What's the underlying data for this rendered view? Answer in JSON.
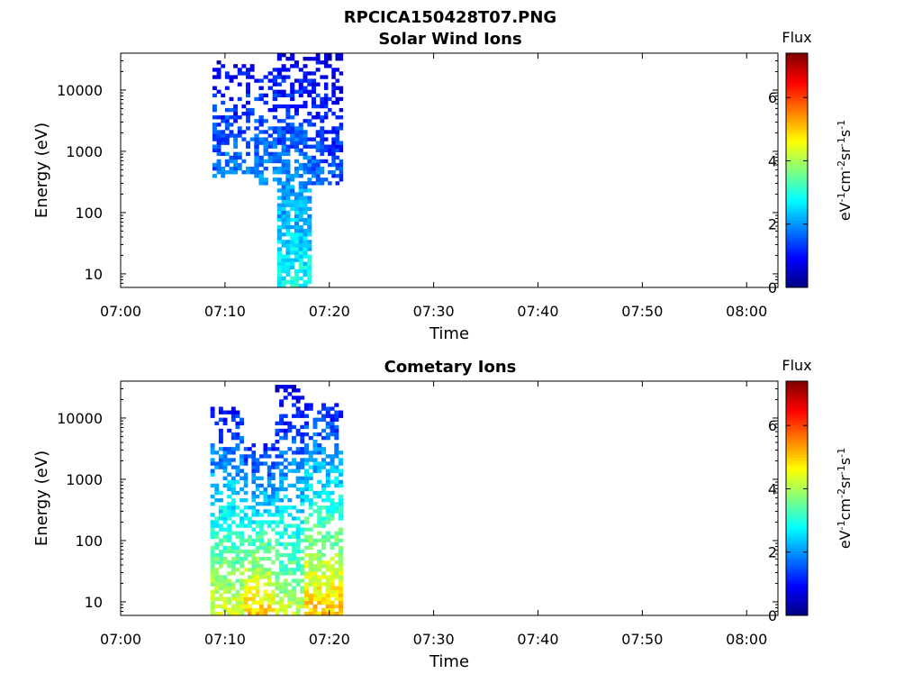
{
  "figure_title": "RPCICA150428T07.PNG",
  "chart_data": [
    {
      "type": "heatmap",
      "title": "Solar Wind Ions",
      "xlabel": "Time",
      "ylabel": "Energy (eV)",
      "y_scale": "log",
      "xticks": [
        "07:00",
        "07:10",
        "07:20",
        "07:30",
        "07:40",
        "07:50",
        "08:00"
      ],
      "yticks": [
        "10",
        "100",
        "1000",
        "10000"
      ],
      "xlim": [
        "07:00",
        "08:03"
      ],
      "ylim": [
        6,
        40000
      ],
      "colorbar": {
        "label": "Flux",
        "unit": "eV-1cm-2sr-1s-1",
        "ticks": [
          0,
          2,
          4,
          6
        ],
        "range": [
          0,
          7.4
        ]
      },
      "bands": [
        {
          "t_start": "07:08.8",
          "t_end": "07:10.0",
          "e_min": 350,
          "e_max": 38000,
          "flux_high": 1.8,
          "flux_low": 0.7,
          "fill": 0.55
        },
        {
          "t_start": "07:10.0",
          "t_end": "07:12.8",
          "e_min": 400,
          "e_max": 25000,
          "flux_high": 1.9,
          "flux_low": 0.8,
          "fill": 0.55
        },
        {
          "t_start": "07:12.8",
          "t_end": "07:15.0",
          "e_min": 280,
          "e_max": 24000,
          "flux_high": 2.0,
          "flux_low": 0.9,
          "fill": 0.6
        },
        {
          "t_start": "07:15.0",
          "t_end": "07:18.3",
          "e_min": 6,
          "e_max": 38000,
          "flux_high": 2.9,
          "flux_low": 0.8,
          "fill": 0.9
        },
        {
          "t_start": "07:18.3",
          "t_end": "07:19.5",
          "e_min": 280,
          "e_max": 38000,
          "flux_high": 1.7,
          "flux_low": 0.8,
          "fill": 0.7
        },
        {
          "t_start": "07:19.5",
          "t_end": "07:21.3",
          "e_min": 280,
          "e_max": 38000,
          "flux_high": 1.5,
          "flux_low": 0.6,
          "fill": 0.7
        }
      ]
    },
    {
      "type": "heatmap",
      "title": "Cometary Ions",
      "xlabel": "Time",
      "ylabel": "Energy (eV)",
      "y_scale": "log",
      "xticks": [
        "07:00",
        "07:10",
        "07:20",
        "07:30",
        "07:40",
        "07:50",
        "08:00"
      ],
      "yticks": [
        "10",
        "100",
        "1000",
        "10000"
      ],
      "xlim": [
        "07:00",
        "08:03"
      ],
      "ylim": [
        6,
        40000
      ],
      "colorbar": {
        "label": "Flux",
        "unit": "eV-1cm-2sr-1s-1",
        "ticks": [
          0,
          2,
          4,
          6
        ],
        "range": [
          0,
          7.4
        ]
      },
      "bands": [
        {
          "t_start": "07:08.6",
          "t_end": "07:11.8",
          "e_min": 6,
          "e_max": 15000,
          "flux_high": 4.4,
          "flux_low": 1.0,
          "fill": 0.75
        },
        {
          "t_start": "07:11.8",
          "t_end": "07:14.8",
          "e_min": 6,
          "e_max": 4000,
          "flux_high": 5.0,
          "flux_low": 1.0,
          "fill": 0.8
        },
        {
          "t_start": "07:14.8",
          "t_end": "07:17.6",
          "e_min": 6,
          "e_max": 36000,
          "flux_high": 4.2,
          "flux_low": 0.6,
          "fill": 0.75
        },
        {
          "t_start": "07:17.6",
          "t_end": "07:21.3",
          "e_min": 6,
          "e_max": 18000,
          "flux_high": 5.1,
          "flux_low": 1.0,
          "fill": 0.8
        }
      ]
    }
  ]
}
